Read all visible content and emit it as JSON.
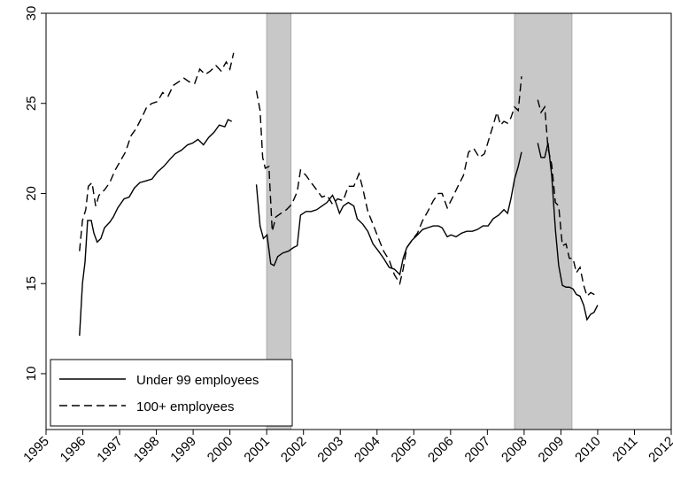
{
  "chart_data": {
    "type": "line",
    "xlim": [
      1995,
      2012
    ],
    "xticks": [
      1995,
      1996,
      1997,
      1998,
      1999,
      2000,
      2001,
      2002,
      2003,
      2004,
      2005,
      2006,
      2007,
      2008,
      2009,
      2010,
      2011,
      2012
    ],
    "ylim": [
      6.9,
      30
    ],
    "yticks": [
      10,
      15,
      20,
      25,
      30
    ],
    "grid": false,
    "legend": "lower-left",
    "shaded_regions": [
      [
        2001.0,
        2001.66
      ],
      [
        2007.74,
        2009.3
      ]
    ],
    "shade_color": "#c8c8c8",
    "series": [
      {
        "name": "Under 99 employees",
        "color": "#000000",
        "dash": "solid",
        "x": [
          1995.91,
          1995.99,
          1996.06,
          1996.13,
          1996.23,
          1996.3,
          1996.39,
          1996.49,
          1996.59,
          1996.73,
          1996.83,
          1996.95,
          1997.12,
          1997.26,
          1997.4,
          1997.55,
          1997.72,
          1997.88,
          1998.03,
          1998.2,
          1998.37,
          1998.51,
          1998.68,
          1998.85,
          1998.99,
          1999.13,
          1999.28,
          1999.42,
          1999.57,
          1999.71,
          1999.86,
          1999.95,
          2000.05,
          2000.4,
          2000.72,
          2000.82,
          2000.91,
          2001.01,
          2001.11,
          2001.2,
          2001.3,
          2001.44,
          2001.59,
          2001.73,
          2001.83,
          2001.92,
          2002.07,
          2002.21,
          2002.36,
          2002.5,
          2002.64,
          2002.79,
          2002.88,
          2002.98,
          2003.08,
          2003.22,
          2003.37,
          2003.46,
          2003.61,
          2003.75,
          2003.89,
          2004.04,
          2004.18,
          2004.33,
          2004.47,
          2004.62,
          2004.71,
          2004.81,
          2004.95,
          2005.1,
          2005.24,
          2005.38,
          2005.53,
          2005.67,
          2005.77,
          2005.91,
          2006.01,
          2006.15,
          2006.3,
          2006.44,
          2006.59,
          2006.73,
          2006.88,
          2007.02,
          2007.16,
          2007.31,
          2007.45,
          2007.55,
          2007.64,
          2007.74,
          2007.84,
          2007.93,
          2008.15,
          2008.37,
          2008.46,
          2008.56,
          2008.65,
          2008.75,
          2008.85,
          2008.94,
          2009.04,
          2009.14,
          2009.23,
          2009.33,
          2009.42,
          2009.52,
          2009.62,
          2009.71,
          2009.81,
          2009.9,
          2010.0
        ],
        "values": [
          12.1,
          15,
          16.2,
          18.5,
          18.5,
          17.8,
          17.3,
          17.5,
          18.1,
          18.4,
          18.7,
          19.2,
          19.7,
          19.8,
          20.3,
          20.6,
          20.7,
          20.8,
          21.2,
          21.5,
          21.9,
          22.2,
          22.4,
          22.7,
          22.8,
          23.0,
          22.7,
          23.1,
          23.4,
          23.8,
          23.7,
          24.1,
          24.0,
          null,
          20.5,
          18.2,
          17.5,
          17.7,
          16.1,
          16.0,
          16.5,
          16.7,
          16.8,
          17.0,
          17.1,
          18.8,
          19.0,
          19.0,
          19.1,
          19.3,
          19.5,
          19.9,
          19.5,
          18.9,
          19.3,
          19.5,
          19.3,
          18.6,
          18.3,
          17.9,
          17.2,
          16.8,
          16.4,
          15.9,
          15.8,
          15.5,
          16.4,
          17.0,
          17.4,
          17.7,
          18.0,
          18.1,
          18.2,
          18.2,
          18.1,
          17.6,
          17.7,
          17.6,
          17.8,
          17.9,
          17.9,
          18.0,
          18.2,
          18.2,
          18.6,
          18.8,
          19.1,
          18.9,
          19.7,
          20.8,
          21.5,
          22.3,
          null,
          22.8,
          22.0,
          22.0,
          22.8,
          21.0,
          18.0,
          16.0,
          14.9,
          14.8,
          14.8,
          14.7,
          14.4,
          14.3,
          13.8,
          13.0,
          13.3,
          13.4,
          13.8
        ]
      },
      {
        "name": "100+ employees",
        "color": "#000000",
        "dash": "dashed",
        "x": [
          1995.91,
          1995.99,
          1996.08,
          1996.15,
          1996.25,
          1996.35,
          1996.44,
          1996.59,
          1996.73,
          1996.88,
          1997.02,
          1997.16,
          1997.31,
          1997.45,
          1997.6,
          1997.74,
          1997.88,
          1998.03,
          1998.17,
          1998.32,
          1998.46,
          1998.61,
          1998.75,
          1998.89,
          1999.04,
          1999.18,
          1999.33,
          1999.47,
          1999.62,
          1999.76,
          1999.9,
          2000.0,
          2000.1,
          2000.4,
          2000.72,
          2000.82,
          2000.89,
          2000.96,
          2001.06,
          2001.15,
          2001.25,
          2001.39,
          2001.54,
          2001.68,
          2001.83,
          2001.92,
          2002.07,
          2002.21,
          2002.36,
          2002.5,
          2002.64,
          2002.79,
          2002.93,
          2003.08,
          2003.22,
          2003.37,
          2003.51,
          2003.61,
          2003.75,
          2003.89,
          2004.04,
          2004.18,
          2004.33,
          2004.47,
          2004.62,
          2004.71,
          2004.81,
          2004.95,
          2005.1,
          2005.24,
          2005.38,
          2005.53,
          2005.67,
          2005.77,
          2005.91,
          2006.06,
          2006.2,
          2006.35,
          2006.49,
          2006.63,
          2006.78,
          2006.92,
          2007.07,
          2007.16,
          2007.26,
          2007.36,
          2007.45,
          2007.55,
          2007.64,
          2007.74,
          2007.84,
          2007.93,
          2008.15,
          2008.37,
          2008.46,
          2008.56,
          2008.65,
          2008.75,
          2008.85,
          2008.94,
          2009.04,
          2009.14,
          2009.23,
          2009.33,
          2009.42,
          2009.52,
          2009.62,
          2009.71,
          2009.81,
          2009.9,
          2010.0
        ],
        "values": [
          16.8,
          18.5,
          19.1,
          20.4,
          20.6,
          19.3,
          19.9,
          20.2,
          20.6,
          21.3,
          21.8,
          22.3,
          23.2,
          23.6,
          24.2,
          24.8,
          25.0,
          25.1,
          25.6,
          25.4,
          26.0,
          26.2,
          26.4,
          26.2,
          26.1,
          26.9,
          26.6,
          26.8,
          27.1,
          26.8,
          27.3,
          26.9,
          27.8,
          null,
          25.7,
          24.6,
          22.0,
          21.4,
          21.5,
          17.9,
          18.7,
          18.9,
          19.1,
          19.4,
          20.1,
          21.3,
          21.0,
          20.6,
          20.2,
          19.8,
          19.9,
          19.4,
          19.7,
          19.6,
          20.4,
          20.4,
          21.1,
          20.3,
          19.0,
          18.3,
          17.5,
          16.8,
          16.3,
          15.5,
          15.0,
          15.8,
          17.0,
          17.4,
          17.8,
          18.5,
          19.0,
          19.6,
          20.0,
          20.0,
          19.2,
          19.8,
          20.4,
          21.0,
          22.3,
          22.5,
          22.0,
          22.2,
          23.2,
          23.8,
          24.5,
          23.8,
          24.0,
          23.9,
          24.2,
          24.8,
          24.6,
          26.5,
          null,
          25.2,
          24.5,
          24.8,
          22.5,
          21.6,
          19.5,
          19.3,
          17.1,
          17.2,
          16.4,
          16.4,
          15.6,
          15.9,
          14.9,
          14.3,
          14.5,
          14.4,
          14.5
        ]
      }
    ]
  }
}
